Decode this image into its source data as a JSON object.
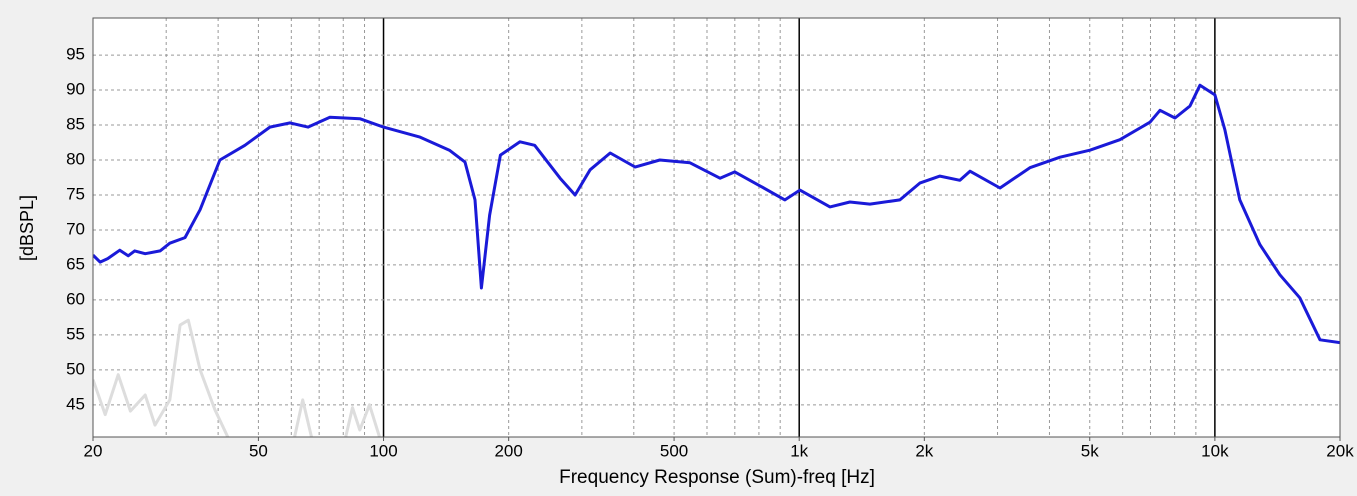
{
  "chart_data": {
    "type": "line",
    "x_label": "Frequency Response (Sum)-freq [Hz]",
    "y_label": "[dBSPL]",
    "xscale": "log",
    "grid": true,
    "xlim": [
      20,
      20000
    ],
    "ylim": [
      40.4,
      100.3
    ],
    "xticks": [
      20,
      50,
      100,
      200,
      500,
      {
        "value": 1000,
        "label": "1k"
      },
      {
        "value": 2000,
        "label": "2k"
      },
      {
        "value": 5000,
        "label": "5k"
      },
      {
        "value": 10000,
        "label": "10k"
      },
      {
        "value": 20000,
        "label": "20k"
      }
    ],
    "yticks": [
      45,
      50,
      55,
      60,
      65,
      70,
      75,
      80,
      85,
      90,
      95
    ],
    "series": [
      {
        "color": "#dddddd",
        "x": [
          20,
          21.4,
          23.0,
          24.6,
          26.7,
          28.2,
          30.6,
          32.4,
          33.9,
          36.2,
          39.3,
          42.2,
          50,
          61.1,
          63.9,
          67.1,
          75,
          81.1,
          84.2,
          87.7,
          92.5,
          97.8
        ],
        "values": [
          48.6,
          43.6,
          49.3,
          44.1,
          46.4,
          42.1,
          45.7,
          56.4,
          57.1,
          50,
          44.3,
          40.4,
          null,
          40.4,
          45.7,
          40.4,
          null,
          40.4,
          44.6,
          41.4,
          45,
          40.4
        ]
      },
      {
        "color": "#1a1ad8",
        "x": [
          20,
          20.8,
          21.7,
          23.2,
          24.3,
          25.2,
          26.7,
          29.0,
          30.6,
          33.3,
          36.2,
          40.4,
          46.4,
          53.3,
          59.6,
          65.8,
          74.3,
          87.7,
          100,
          122,
          144,
          157,
          166,
          172,
          180,
          191,
          213,
          231,
          266,
          289,
          314,
          351,
          403,
          462,
          546,
          645,
          700,
          805,
          924,
          1004,
          1186,
          1324,
          1479,
          1747,
          1950,
          2180,
          2436,
          2575,
          3041,
          3590,
          4240,
          5005,
          5910,
          6980,
          7380,
          8020,
          8710,
          9210,
          10000,
          10570,
          11480,
          12830,
          14330,
          16010,
          17900,
          20000
        ],
        "values": [
          66.4,
          65.4,
          65.9,
          67.1,
          66.3,
          67.0,
          66.6,
          67,
          68.1,
          68.9,
          72.9,
          80,
          82.1,
          84.7,
          85.3,
          84.7,
          86.1,
          85.9,
          84.7,
          83.3,
          81.4,
          79.7,
          74.3,
          61.7,
          72.1,
          80.7,
          82.6,
          82.1,
          77.4,
          75,
          78.6,
          81,
          79,
          80,
          79.6,
          77.4,
          78.3,
          76.3,
          74.3,
          75.7,
          73.3,
          74,
          73.7,
          74.3,
          76.7,
          77.7,
          77.1,
          78.4,
          76,
          78.9,
          80.4,
          81.4,
          82.9,
          85.4,
          87.1,
          86,
          87.7,
          90.7,
          89.3,
          84.3,
          74.3,
          67.9,
          63.6,
          60.3,
          54.3,
          53.9
        ]
      }
    ]
  }
}
